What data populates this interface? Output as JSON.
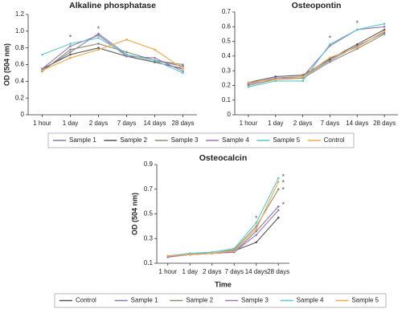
{
  "chart_data": [
    {
      "type": "line",
      "title": "Alkaline phosphatase",
      "y_label": "OD (504 nm)",
      "categories": [
        "1 hour",
        "1 day",
        "2 days",
        "7 days",
        "14 days",
        "28 days"
      ],
      "ylim": [
        0,
        1.2
      ],
      "yticks": [
        0,
        {
          "value": 0.2,
          "label": "0.2"
        },
        {
          "value": 0.4,
          "label": "0.4"
        },
        {
          "value": 0.6,
          "label": "0.6"
        },
        {
          "value": 0.8,
          "label": "0.8"
        },
        {
          "value": 1.0,
          "label": "1.0"
        },
        {
          "value": 1.2,
          "label": "1.2"
        }
      ],
      "legend": true,
      "series": [
        {
          "name": "Sample 1",
          "color": "#7d7fa3",
          "values": [
            0.53,
            0.75,
            0.97,
            0.72,
            0.65,
            0.58
          ]
        },
        {
          "name": "Sample 2",
          "color": "#555555",
          "values": [
            0.55,
            0.72,
            0.8,
            0.7,
            0.63,
            0.55
          ]
        },
        {
          "name": "Sample 3",
          "color": "#8f8c72",
          "values": [
            0.52,
            0.78,
            0.85,
            0.75,
            0.65,
            0.6
          ]
        },
        {
          "name": "Sample 4",
          "color": "#9a78b8",
          "values": [
            0.55,
            0.82,
            0.95,
            0.7,
            0.68,
            0.52
          ]
        },
        {
          "name": "Sample 5",
          "color": "#5cc6cc",
          "values": [
            0.72,
            0.85,
            0.92,
            0.72,
            0.65,
            0.5
          ]
        },
        {
          "name": "Control",
          "color": "#f0a848",
          "values": [
            0.53,
            0.68,
            0.78,
            0.9,
            0.78,
            0.55
          ]
        }
      ],
      "annotations": [
        {
          "text": "*",
          "x": "1 day",
          "y": 0.92
        },
        {
          "text": "*",
          "x": "2 days",
          "y": 1.02
        }
      ]
    },
    {
      "type": "line",
      "title": "Osteopontin",
      "categories": [
        "1 hour",
        "1 day",
        "2 days",
        "7 days",
        "14 days",
        "28 days"
      ],
      "ylim": [
        0,
        0.7
      ],
      "yticks": [
        0,
        0.1,
        0.2,
        0.3,
        0.4,
        0.5,
        0.6,
        0.7
      ],
      "legend": false,
      "series": [
        {
          "name": "Sample 1",
          "color": "#7d7fa3",
          "values": [
            0.21,
            0.25,
            0.26,
            0.37,
            0.47,
            0.56
          ]
        },
        {
          "name": "Sample 2",
          "color": "#555555",
          "values": [
            0.22,
            0.26,
            0.27,
            0.38,
            0.48,
            0.58
          ]
        },
        {
          "name": "Sample 3",
          "color": "#8f8c72",
          "values": [
            0.2,
            0.24,
            0.25,
            0.36,
            0.45,
            0.55
          ]
        },
        {
          "name": "Sample 4",
          "color": "#9a78b8",
          "values": [
            0.21,
            0.25,
            0.26,
            0.47,
            0.58,
            0.6
          ]
        },
        {
          "name": "Sample 5",
          "color": "#5cc6cc",
          "values": [
            0.19,
            0.23,
            0.23,
            0.48,
            0.58,
            0.62
          ]
        },
        {
          "name": "Control",
          "color": "#f0a848",
          "values": [
            0.22,
            0.24,
            0.26,
            0.39,
            0.46,
            0.57
          ]
        }
      ],
      "annotations": [
        {
          "text": "*",
          "x": "7 days",
          "y": 0.52
        },
        {
          "text": "*",
          "x": "14 days",
          "y": 0.62
        }
      ]
    },
    {
      "type": "line",
      "title": "Osteocalcin",
      "y_label": "OD (504 nm)",
      "x_label": "Time",
      "categories": [
        "1 hour",
        "1 day",
        "2 days",
        "7 days",
        "14 days",
        "28 days"
      ],
      "ylim": [
        0.1,
        0.9
      ],
      "yticks": [
        0.1,
        0.3,
        0.5,
        0.7,
        0.9
      ],
      "legend": true,
      "series": [
        {
          "name": "Control",
          "color": "#555555",
          "values": [
            0.16,
            0.17,
            0.18,
            0.2,
            0.27,
            0.47
          ]
        },
        {
          "name": "Sample 1",
          "color": "#7d7fa3",
          "values": [
            0.15,
            0.18,
            0.18,
            0.19,
            0.36,
            0.56
          ]
        },
        {
          "name": "Sample 2",
          "color": "#8f8c72",
          "values": [
            0.16,
            0.17,
            0.18,
            0.21,
            0.4,
            0.7
          ]
        },
        {
          "name": "Sample 3",
          "color": "#9a78b8",
          "values": [
            0.15,
            0.17,
            0.18,
            0.19,
            0.33,
            0.53
          ]
        },
        {
          "name": "Sample 4",
          "color": "#5cc6cc",
          "values": [
            0.16,
            0.18,
            0.19,
            0.22,
            0.43,
            0.79
          ]
        },
        {
          "name": "Sample 5",
          "color": "#f0a848",
          "values": [
            0.16,
            0.17,
            0.18,
            0.2,
            0.38,
            0.76
          ]
        }
      ],
      "annotations": [
        {
          "text": "*",
          "x": "14 days",
          "y": 0.46
        },
        {
          "text": "*",
          "x": "28 days",
          "y": 0.8
        },
        {
          "text": "*",
          "x": "28 days",
          "y": 0.75
        },
        {
          "text": "*",
          "x": "28 days",
          "y": 0.69
        },
        {
          "text": "*",
          "x": "28 days",
          "y": 0.57
        }
      ]
    }
  ]
}
